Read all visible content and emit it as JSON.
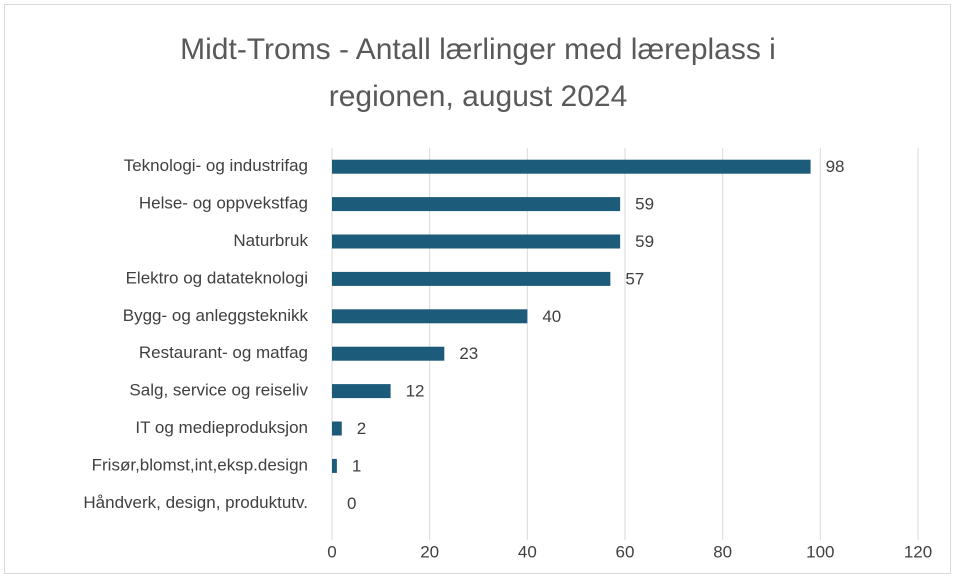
{
  "chart_data": {
    "type": "bar",
    "orientation": "horizontal",
    "title": "Midt-Troms - Antall lærlinger med læreplass i regionen, august 2024",
    "categories": [
      "Teknologi- og industrifag",
      "Helse- og oppvekstfag",
      "Naturbruk",
      "Elektro og datateknologi",
      "Bygg- og anleggsteknikk",
      "Restaurant- og matfag",
      "Salg, service og reiseliv",
      "IT og medieproduksjon",
      "Frisør,blomst,int,eksp.design",
      "Håndverk, design, produktutv."
    ],
    "values": [
      98,
      59,
      59,
      57,
      40,
      23,
      12,
      2,
      1,
      0
    ],
    "color": "#1d5b7a",
    "xlim": [
      0,
      120
    ],
    "xticks": [
      0,
      20,
      40,
      60,
      80,
      100,
      120
    ],
    "grid": true
  }
}
